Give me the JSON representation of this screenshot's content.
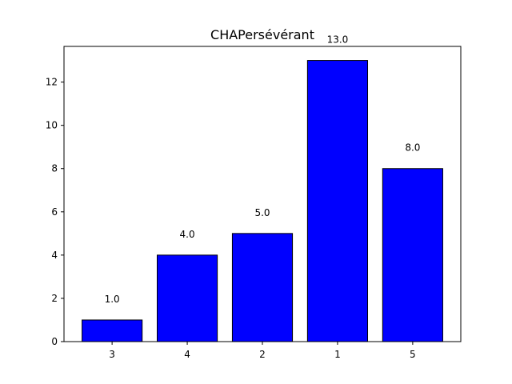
{
  "chart_data": {
    "type": "bar",
    "title": "CHAPersévérant",
    "xlabel": "",
    "ylabel": "",
    "categories": [
      "3",
      "4",
      "2",
      "1",
      "5"
    ],
    "values": [
      1,
      4,
      5,
      13,
      8
    ],
    "data_labels": [
      "1.0",
      "4.0",
      "5.0",
      "13.0",
      "8.0"
    ],
    "yticks": [
      0,
      2,
      4,
      6,
      8,
      10,
      12
    ],
    "ylim": [
      0,
      13.65
    ],
    "grid": false,
    "bar_color": "#0000ff",
    "bar_edge_color": "#000000"
  }
}
